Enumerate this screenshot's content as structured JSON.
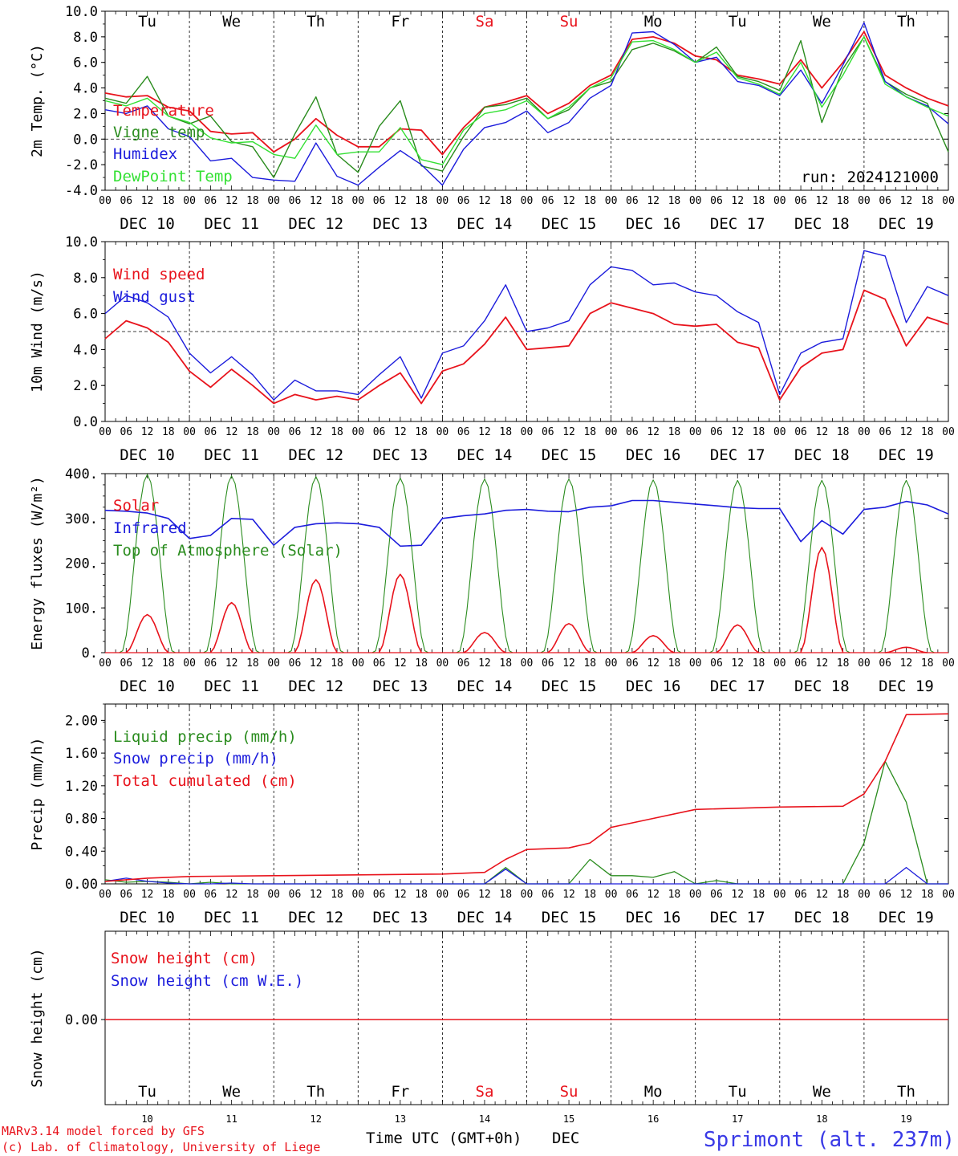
{
  "colors": {
    "red": "#e8131c",
    "green": "#2a8c1e",
    "blue": "#1c1cdc",
    "lightgreen": "#33e033",
    "axis": "#000000",
    "footer_blue": "#3a3ae6"
  },
  "days": {
    "weekdays": [
      "Tu",
      "We",
      "Th",
      "Fr",
      "Sa",
      "Su",
      "Mo",
      "Tu",
      "We",
      "Th"
    ],
    "weekend_flags": [
      false,
      false,
      false,
      false,
      true,
      true,
      false,
      false,
      false,
      false
    ],
    "dates": [
      "DEC 10",
      "DEC 11",
      "DEC 12",
      "DEC 13",
      "DEC 14",
      "DEC 15",
      "DEC 16",
      "DEC 17",
      "DEC 18",
      "DEC 19"
    ],
    "day_numbers": [
      "10",
      "11",
      "12",
      "13",
      "14",
      "15",
      "16",
      "17",
      "18",
      "19"
    ],
    "hour_ticks": [
      "00",
      "06",
      "12",
      "18"
    ],
    "final_tick": "00"
  },
  "footer": {
    "model_line": "MARv3.14 model forced by GFS",
    "lab_line": "(c) Lab. of Climatology, University of Liege",
    "xlabel": "Time UTC (GMT+0h)",
    "month": "DEC",
    "station": "Sprimont (alt. 237m)"
  },
  "chart_data": [
    {
      "type": "line",
      "id": "temperature",
      "ylabel": "2m Temp. (°C)",
      "ylim": [
        -4,
        10
      ],
      "yticks": [
        "-4.0",
        "-2.0",
        "0.0",
        "2.0",
        "4.0",
        "6.0",
        "8.0",
        "10.0"
      ],
      "dashed_zero": 0,
      "annotation": "run: 2024121000",
      "x_hours": [
        0,
        6,
        12,
        18,
        24,
        30,
        36,
        42,
        48,
        54,
        60,
        66,
        72,
        78,
        84,
        90,
        96,
        102,
        108,
        114,
        120,
        126,
        132,
        138,
        144,
        150,
        156,
        162,
        168,
        174,
        180,
        186,
        192,
        198,
        204,
        210,
        216,
        222,
        228,
        234,
        240
      ],
      "series": [
        {
          "name": "Temperature",
          "color": "red",
          "values": [
            3.6,
            3.3,
            3.4,
            2.5,
            2.2,
            0.6,
            0.4,
            0.5,
            -1.0,
            0.0,
            1.6,
            0.3,
            -0.6,
            -0.6,
            0.8,
            0.7,
            -1.2,
            0.9,
            2.5,
            2.9,
            3.4,
            2.0,
            2.8,
            4.2,
            5.0,
            7.8,
            8.0,
            7.5,
            6.5,
            6.2,
            5.0,
            4.7,
            4.3,
            6.2,
            4.0,
            6.0,
            8.4,
            5.0,
            4.0,
            3.2,
            2.6
          ]
        },
        {
          "name": "Vigne temp",
          "color": "green",
          "values": [
            3.2,
            2.8,
            4.9,
            1.8,
            1.2,
            1.8,
            -0.2,
            -0.6,
            -3.0,
            0.4,
            3.3,
            -1.2,
            -2.6,
            1.0,
            3.0,
            -2.1,
            -2.5,
            0.2,
            2.5,
            2.7,
            3.2,
            1.6,
            2.3,
            4.0,
            4.5,
            7.0,
            7.5,
            6.9,
            6.0,
            7.2,
            4.9,
            4.5,
            3.8,
            7.7,
            1.3,
            5.5,
            8.0,
            4.5,
            3.5,
            2.8,
            -1.0
          ]
        },
        {
          "name": "Humidex",
          "color": "blue",
          "values": [
            2.3,
            2.0,
            2.6,
            0.8,
            0.2,
            -1.7,
            -1.5,
            -3.0,
            -3.2,
            -3.3,
            -0.3,
            -2.9,
            -3.6,
            -2.2,
            -0.9,
            -2.0,
            -3.6,
            -0.8,
            0.9,
            1.3,
            2.2,
            0.5,
            1.3,
            3.2,
            4.2,
            8.3,
            8.4,
            7.4,
            6.0,
            6.4,
            4.5,
            4.2,
            3.4,
            5.4,
            2.8,
            5.8,
            9.1,
            4.5,
            3.3,
            2.6,
            1.2
          ]
        },
        {
          "name": "DewPoint Temp",
          "color": "lightgreen",
          "values": [
            3.0,
            2.6,
            3.2,
            1.8,
            1.3,
            0.1,
            -0.3,
            -0.2,
            -1.2,
            -1.5,
            1.1,
            -1.2,
            -1.0,
            -1.0,
            0.9,
            -1.6,
            -2.0,
            0.7,
            2.0,
            2.3,
            3.0,
            1.6,
            2.5,
            4.0,
            4.8,
            7.6,
            7.7,
            7.0,
            6.0,
            6.8,
            4.8,
            4.3,
            3.5,
            6.0,
            2.5,
            5.0,
            8.0,
            4.3,
            3.3,
            2.5,
            1.8
          ]
        }
      ]
    },
    {
      "type": "line",
      "id": "wind",
      "ylabel": "10m Wind (m/s)",
      "ylim": [
        0,
        10
      ],
      "yticks": [
        "0.0",
        "2.0",
        "4.0",
        "6.0",
        "8.0",
        "10.0"
      ],
      "dashed_line": 5,
      "x_hours": [
        0,
        6,
        12,
        18,
        24,
        30,
        36,
        42,
        48,
        54,
        60,
        66,
        72,
        78,
        84,
        90,
        96,
        102,
        108,
        114,
        120,
        126,
        132,
        138,
        144,
        150,
        156,
        162,
        168,
        174,
        180,
        186,
        192,
        198,
        204,
        210,
        216,
        222,
        228,
        234,
        240
      ],
      "series": [
        {
          "name": "Wind speed",
          "color": "red",
          "values": [
            4.6,
            5.6,
            5.2,
            4.4,
            2.8,
            1.9,
            2.9,
            2.0,
            1.0,
            1.5,
            1.2,
            1.4,
            1.2,
            2.0,
            2.7,
            1.0,
            2.8,
            3.2,
            4.3,
            5.8,
            4.0,
            4.1,
            4.2,
            6.0,
            6.6,
            6.3,
            6.0,
            5.4,
            5.3,
            5.4,
            4.4,
            4.1,
            1.2,
            3.0,
            3.8,
            4.0,
            7.3,
            6.8,
            4.2,
            5.8,
            5.4
          ]
        },
        {
          "name": "Wind gust",
          "color": "blue",
          "values": [
            6.0,
            7.0,
            6.6,
            5.8,
            3.8,
            2.7,
            3.6,
            2.6,
            1.2,
            2.3,
            1.7,
            1.7,
            1.5,
            2.6,
            3.6,
            1.3,
            3.8,
            4.2,
            5.6,
            7.6,
            5.0,
            5.2,
            5.6,
            7.6,
            8.6,
            8.4,
            7.6,
            7.7,
            7.2,
            7.0,
            6.1,
            5.5,
            1.5,
            3.8,
            4.4,
            4.6,
            9.5,
            9.2,
            5.5,
            7.5,
            7.0
          ]
        }
      ]
    },
    {
      "type": "line",
      "id": "energy",
      "ylabel": "Energy fluxes (W/m²)",
      "ylim": [
        0,
        400
      ],
      "yticks": [
        "0.",
        "100.",
        "200.",
        "300.",
        "400."
      ],
      "solar_peaks": [
        85,
        112,
        163,
        175,
        45,
        65,
        38,
        62,
        235,
        12
      ],
      "toa_peaks": [
        398,
        395,
        393,
        390,
        388,
        388,
        386,
        385,
        385,
        385
      ],
      "series": [
        {
          "name": "Solar",
          "color": "red"
        },
        {
          "name": "Infrared",
          "color": "blue",
          "x_hours": [
            0,
            6,
            12,
            18,
            24,
            30,
            36,
            42,
            48,
            54,
            60,
            66,
            72,
            78,
            84,
            90,
            96,
            102,
            108,
            114,
            120,
            126,
            132,
            138,
            144,
            150,
            156,
            162,
            168,
            174,
            180,
            186,
            192,
            198,
            204,
            210,
            216,
            222,
            228,
            234,
            240
          ],
          "values": [
            318,
            316,
            312,
            300,
            255,
            262,
            300,
            298,
            240,
            280,
            288,
            290,
            288,
            280,
            238,
            240,
            300,
            306,
            310,
            318,
            320,
            316,
            315,
            325,
            328,
            340,
            340,
            336,
            332,
            328,
            324,
            322,
            322,
            248,
            295,
            265,
            320,
            325,
            338,
            330,
            310
          ]
        },
        {
          "name": "Top of Atmosphere (Solar)",
          "color": "green"
        }
      ]
    },
    {
      "type": "line",
      "id": "precip",
      "ylabel": "Precip (mm/h)",
      "ylim": [
        0,
        2.2
      ],
      "yticks": [
        "0.00",
        "0.40",
        "0.80",
        "1.20",
        "1.60",
        "2.00"
      ],
      "series": [
        {
          "name": "Liquid precip (mm/h)",
          "color": "green",
          "x_hours": [
            0,
            6,
            12,
            18,
            24,
            30,
            36,
            42,
            48,
            54,
            60,
            66,
            72,
            78,
            84,
            90,
            96,
            102,
            108,
            114,
            120,
            126,
            132,
            138,
            144,
            150,
            156,
            162,
            168,
            174,
            180,
            186,
            192,
            198,
            204,
            210,
            216,
            222,
            228,
            234,
            240
          ],
          "values": [
            0.05,
            0.02,
            0.03,
            0.02,
            0.0,
            0.02,
            0.0,
            0.0,
            0.0,
            0.0,
            0.0,
            0.0,
            0.0,
            0.0,
            0.0,
            0.0,
            0.0,
            0.0,
            0.0,
            0.2,
            0.0,
            0.0,
            0.0,
            0.3,
            0.1,
            0.1,
            0.08,
            0.15,
            0.0,
            0.04,
            0.0,
            0.0,
            0.0,
            0.0,
            0.0,
            0.0,
            0.5,
            1.5,
            1.0,
            0.0,
            0.0
          ]
        },
        {
          "name": "Snow precip (mm/h)",
          "color": "blue",
          "x_hours": [
            0,
            6,
            12,
            18,
            24,
            30,
            36,
            42,
            48,
            54,
            60,
            66,
            72,
            78,
            84,
            90,
            96,
            102,
            108,
            114,
            120,
            126,
            132,
            138,
            144,
            150,
            156,
            162,
            168,
            174,
            180,
            186,
            192,
            198,
            204,
            210,
            216,
            222,
            228,
            234,
            240
          ],
          "values": [
            0.03,
            0.07,
            0.03,
            0.01,
            0.0,
            0.0,
            0.01,
            0.0,
            0.0,
            0.0,
            0.0,
            0.0,
            0.0,
            0.0,
            0.0,
            0.0,
            0.0,
            0.0,
            0.0,
            0.18,
            0.0,
            0.0,
            0.0,
            0.0,
            0.0,
            0.0,
            0.0,
            0.0,
            0.0,
            0.0,
            0.0,
            0.0,
            0.0,
            0.0,
            0.0,
            0.0,
            0.0,
            0.0,
            0.2,
            0.0,
            0.0
          ]
        },
        {
          "name": "Total cumulated (cm)",
          "color": "red",
          "x_hours": [
            0,
            12,
            24,
            48,
            72,
            96,
            108,
            114,
            120,
            132,
            138,
            144,
            156,
            168,
            192,
            210,
            216,
            222,
            228,
            240
          ],
          "values": [
            0.03,
            0.07,
            0.09,
            0.1,
            0.11,
            0.12,
            0.14,
            0.3,
            0.42,
            0.44,
            0.5,
            0.69,
            0.8,
            0.91,
            0.94,
            0.95,
            1.1,
            1.5,
            2.07,
            2.08
          ]
        }
      ]
    },
    {
      "type": "line",
      "id": "snow",
      "ylabel": "Snow height (cm)",
      "yticks": [
        "0.00"
      ],
      "series": [
        {
          "name": "Snow height (cm)",
          "color": "red",
          "values": [
            0,
            0
          ]
        },
        {
          "name": "Snow height (cm W.E.)",
          "color": "blue",
          "values": []
        }
      ]
    }
  ]
}
